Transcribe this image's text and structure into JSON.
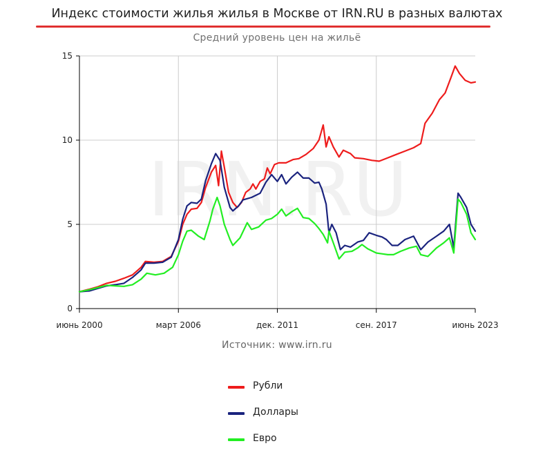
{
  "title": "Индекс стоимости жилья жилья в Москве от IRN.RU в разных валютах",
  "subtitle": "Средний уровень цен на жильё",
  "source": "Источник: www.irn.ru",
  "watermark": "IRN.RU",
  "colors": {
    "title_rule": "#e03030",
    "axis": "#000000",
    "grid": "#cccccc",
    "watermark": "#f1f1f1"
  },
  "chart_data": {
    "type": "line",
    "title": "Индекс стоимости жилья жилья в Москве от IRN.RU в разных валютах",
    "subtitle": "Средний уровень цен на жильё",
    "x_type": "date",
    "xlim": [
      "2000-06",
      "2023-06"
    ],
    "ylim": [
      0,
      15
    ],
    "x_ticks": [
      {
        "date": "2000-06",
        "label": "июнь 2000"
      },
      {
        "date": "2006-03",
        "label": "март 2006"
      },
      {
        "date": "2011-12",
        "label": "дек. 2011"
      },
      {
        "date": "2017-09",
        "label": "сен. 2017"
      },
      {
        "date": "2023-06",
        "label": "июнь 2023"
      }
    ],
    "y_ticks": [
      0,
      5,
      10,
      15
    ],
    "grid": true,
    "legend_position": "bottom",
    "series": [
      {
        "name": "Рубли",
        "color": "#ee1c1c",
        "points": [
          [
            "2000-06",
            1.0
          ],
          [
            "2001-01",
            1.15
          ],
          [
            "2001-07",
            1.3
          ],
          [
            "2002-01",
            1.5
          ],
          [
            "2002-07",
            1.62
          ],
          [
            "2003-01",
            1.8
          ],
          [
            "2003-07",
            2.0
          ],
          [
            "2004-01",
            2.45
          ],
          [
            "2004-04",
            2.8
          ],
          [
            "2004-10",
            2.75
          ],
          [
            "2005-04",
            2.8
          ],
          [
            "2005-10",
            3.1
          ],
          [
            "2006-03",
            4.0
          ],
          [
            "2006-06",
            5.0
          ],
          [
            "2006-09",
            5.6
          ],
          [
            "2006-12",
            5.9
          ],
          [
            "2007-04",
            5.95
          ],
          [
            "2007-07",
            6.3
          ],
          [
            "2007-10",
            7.2
          ],
          [
            "2008-02",
            8.1
          ],
          [
            "2008-05",
            8.5
          ],
          [
            "2008-07",
            7.3
          ],
          [
            "2008-09",
            9.35
          ],
          [
            "2008-11",
            8.4
          ],
          [
            "2009-02",
            6.9
          ],
          [
            "2009-05",
            6.3
          ],
          [
            "2009-08",
            6.0
          ],
          [
            "2009-11",
            6.3
          ],
          [
            "2010-02",
            6.9
          ],
          [
            "2010-05",
            7.1
          ],
          [
            "2010-07",
            7.4
          ],
          [
            "2010-09",
            7.1
          ],
          [
            "2010-12",
            7.55
          ],
          [
            "2011-03",
            7.7
          ],
          [
            "2011-05",
            8.35
          ],
          [
            "2011-07",
            8.0
          ],
          [
            "2011-10",
            8.55
          ],
          [
            "2012-01",
            8.65
          ],
          [
            "2012-06",
            8.65
          ],
          [
            "2012-11",
            8.85
          ],
          [
            "2013-03",
            8.9
          ],
          [
            "2013-08",
            9.15
          ],
          [
            "2014-01",
            9.5
          ],
          [
            "2014-05",
            10.0
          ],
          [
            "2014-08",
            10.9
          ],
          [
            "2014-10",
            9.6
          ],
          [
            "2014-12",
            10.2
          ],
          [
            "2015-03",
            9.6
          ],
          [
            "2015-07",
            9.0
          ],
          [
            "2015-10",
            9.4
          ],
          [
            "2016-03",
            9.2
          ],
          [
            "2016-06",
            8.95
          ],
          [
            "2016-12",
            8.9
          ],
          [
            "2017-06",
            8.8
          ],
          [
            "2017-11",
            8.75
          ],
          [
            "2018-05",
            8.95
          ],
          [
            "2018-11",
            9.15
          ],
          [
            "2019-05",
            9.35
          ],
          [
            "2019-11",
            9.55
          ],
          [
            "2020-04",
            9.8
          ],
          [
            "2020-07",
            11.0
          ],
          [
            "2020-12",
            11.6
          ],
          [
            "2021-05",
            12.4
          ],
          [
            "2021-09",
            12.8
          ],
          [
            "2022-01",
            13.7
          ],
          [
            "2022-04",
            14.4
          ],
          [
            "2022-07",
            13.95
          ],
          [
            "2022-11",
            13.55
          ],
          [
            "2023-03",
            13.4
          ],
          [
            "2023-06",
            13.45
          ]
        ]
      },
      {
        "name": "Доллары",
        "color": "#1a237e",
        "points": [
          [
            "2000-06",
            1.0
          ],
          [
            "2001-01",
            1.05
          ],
          [
            "2001-07",
            1.2
          ],
          [
            "2002-01",
            1.35
          ],
          [
            "2002-07",
            1.42
          ],
          [
            "2003-01",
            1.5
          ],
          [
            "2003-07",
            1.85
          ],
          [
            "2004-01",
            2.3
          ],
          [
            "2004-04",
            2.7
          ],
          [
            "2004-10",
            2.7
          ],
          [
            "2005-04",
            2.75
          ],
          [
            "2005-10",
            3.05
          ],
          [
            "2006-03",
            4.1
          ],
          [
            "2006-06",
            5.3
          ],
          [
            "2006-09",
            6.1
          ],
          [
            "2006-12",
            6.3
          ],
          [
            "2007-04",
            6.25
          ],
          [
            "2007-07",
            6.5
          ],
          [
            "2007-10",
            7.6
          ],
          [
            "2008-02",
            8.6
          ],
          [
            "2008-05",
            9.2
          ],
          [
            "2008-08",
            8.8
          ],
          [
            "2008-11",
            7.2
          ],
          [
            "2009-03",
            6.0
          ],
          [
            "2009-05",
            5.8
          ],
          [
            "2009-09",
            6.1
          ],
          [
            "2009-12",
            6.45
          ],
          [
            "2010-06",
            6.6
          ],
          [
            "2010-12",
            6.85
          ],
          [
            "2011-04",
            7.5
          ],
          [
            "2011-08",
            7.95
          ],
          [
            "2011-12",
            7.55
          ],
          [
            "2012-03",
            7.95
          ],
          [
            "2012-06",
            7.4
          ],
          [
            "2012-10",
            7.8
          ],
          [
            "2013-02",
            8.1
          ],
          [
            "2013-06",
            7.75
          ],
          [
            "2013-10",
            7.75
          ],
          [
            "2014-02",
            7.45
          ],
          [
            "2014-05",
            7.5
          ],
          [
            "2014-07",
            7.1
          ],
          [
            "2014-10",
            6.2
          ],
          [
            "2014-12",
            4.5
          ],
          [
            "2015-02",
            5.0
          ],
          [
            "2015-05",
            4.5
          ],
          [
            "2015-08",
            3.5
          ],
          [
            "2015-11",
            3.75
          ],
          [
            "2016-03",
            3.65
          ],
          [
            "2016-08",
            3.95
          ],
          [
            "2016-12",
            4.05
          ],
          [
            "2017-04",
            4.5
          ],
          [
            "2017-09",
            4.35
          ],
          [
            "2018-01",
            4.25
          ],
          [
            "2018-04",
            4.1
          ],
          [
            "2018-08",
            3.75
          ],
          [
            "2018-12",
            3.75
          ],
          [
            "2019-05",
            4.1
          ],
          [
            "2019-11",
            4.3
          ],
          [
            "2020-04",
            3.5
          ],
          [
            "2020-09",
            3.95
          ],
          [
            "2021-03",
            4.3
          ],
          [
            "2021-08",
            4.6
          ],
          [
            "2021-12",
            5.0
          ],
          [
            "2022-03",
            3.6
          ],
          [
            "2022-06",
            6.85
          ],
          [
            "2022-08",
            6.6
          ],
          [
            "2022-12",
            6.0
          ],
          [
            "2023-03",
            5.0
          ],
          [
            "2023-06",
            4.6
          ]
        ]
      },
      {
        "name": "Евро",
        "color": "#22ee22",
        "points": [
          [
            "2000-06",
            1.0
          ],
          [
            "2001-01",
            1.12
          ],
          [
            "2001-07",
            1.25
          ],
          [
            "2002-01",
            1.38
          ],
          [
            "2002-07",
            1.35
          ],
          [
            "2003-01",
            1.32
          ],
          [
            "2003-07",
            1.42
          ],
          [
            "2004-01",
            1.75
          ],
          [
            "2004-05",
            2.1
          ],
          [
            "2004-11",
            2.0
          ],
          [
            "2005-05",
            2.1
          ],
          [
            "2005-11",
            2.45
          ],
          [
            "2006-03",
            3.2
          ],
          [
            "2006-06",
            4.0
          ],
          [
            "2006-09",
            4.6
          ],
          [
            "2006-12",
            4.65
          ],
          [
            "2007-05",
            4.3
          ],
          [
            "2007-09",
            4.1
          ],
          [
            "2008-01",
            5.2
          ],
          [
            "2008-03",
            5.9
          ],
          [
            "2008-06",
            6.6
          ],
          [
            "2008-08",
            6.1
          ],
          [
            "2008-11",
            5.0
          ],
          [
            "2009-03",
            4.1
          ],
          [
            "2009-05",
            3.75
          ],
          [
            "2009-10",
            4.2
          ],
          [
            "2010-03",
            5.1
          ],
          [
            "2010-06",
            4.7
          ],
          [
            "2010-11",
            4.85
          ],
          [
            "2011-04",
            5.25
          ],
          [
            "2011-08",
            5.35
          ],
          [
            "2011-12",
            5.6
          ],
          [
            "2012-03",
            5.9
          ],
          [
            "2012-06",
            5.5
          ],
          [
            "2012-10",
            5.75
          ],
          [
            "2013-02",
            5.95
          ],
          [
            "2013-06",
            5.4
          ],
          [
            "2013-10",
            5.35
          ],
          [
            "2014-02",
            5.05
          ],
          [
            "2014-05",
            4.75
          ],
          [
            "2014-08",
            4.4
          ],
          [
            "2014-11",
            3.9
          ],
          [
            "2014-12",
            4.6
          ],
          [
            "2015-03",
            3.9
          ],
          [
            "2015-07",
            2.95
          ],
          [
            "2015-11",
            3.35
          ],
          [
            "2016-04",
            3.4
          ],
          [
            "2016-08",
            3.6
          ],
          [
            "2016-11",
            3.8
          ],
          [
            "2017-03",
            3.55
          ],
          [
            "2017-09",
            3.3
          ],
          [
            "2018-01",
            3.25
          ],
          [
            "2018-05",
            3.2
          ],
          [
            "2018-09",
            3.2
          ],
          [
            "2019-02",
            3.4
          ],
          [
            "2019-08",
            3.6
          ],
          [
            "2020-01",
            3.7
          ],
          [
            "2020-04",
            3.2
          ],
          [
            "2020-09",
            3.1
          ],
          [
            "2021-03",
            3.6
          ],
          [
            "2021-08",
            3.9
          ],
          [
            "2021-12",
            4.2
          ],
          [
            "2022-03",
            3.3
          ],
          [
            "2022-06",
            6.5
          ],
          [
            "2022-08",
            6.3
          ],
          [
            "2022-12",
            5.6
          ],
          [
            "2023-03",
            4.5
          ],
          [
            "2023-06",
            4.1
          ]
        ]
      }
    ]
  }
}
